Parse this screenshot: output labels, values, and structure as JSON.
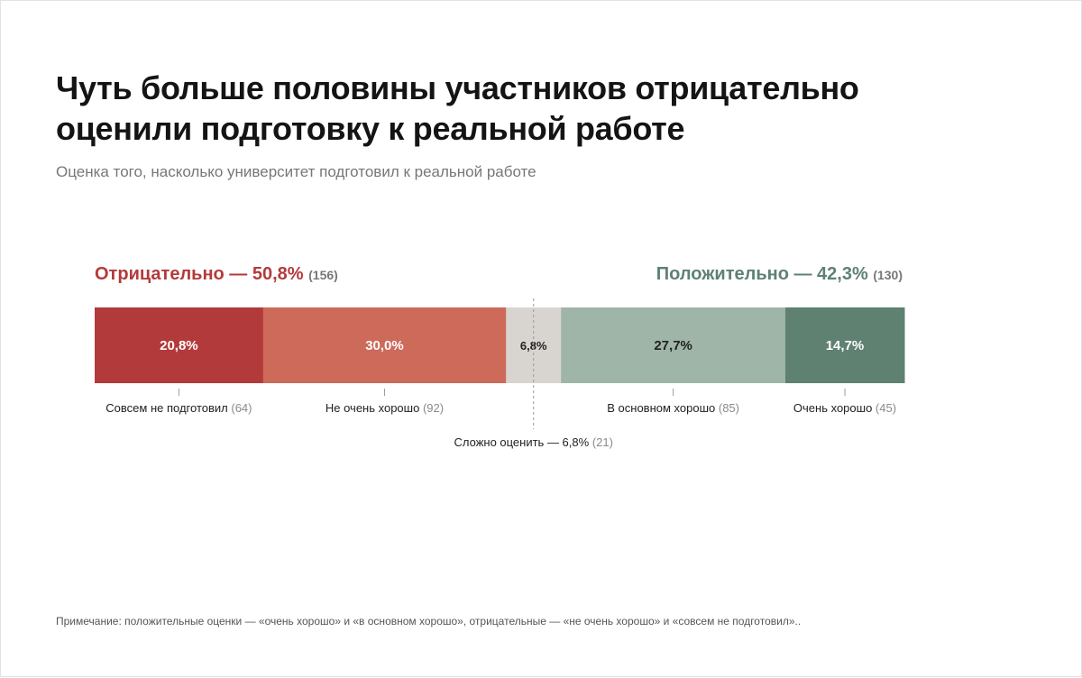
{
  "header": {
    "title": "Чуть больше половины участников отрицательно оценили подготовку к реальной работе",
    "subtitle": "Оценка того, насколько университет подготовил к реальной работе"
  },
  "groups": {
    "negative": {
      "label": "Отрицательно — 50,8%",
      "count": "(156)",
      "color": "#b33a3b"
    },
    "positive": {
      "label": "Положительно — 42,3%",
      "count": "(130)",
      "color": "#5e8172"
    }
  },
  "chart_data": {
    "type": "bar",
    "stacked": true,
    "orientation": "horizontal",
    "unit": "%",
    "segments": [
      {
        "category": "Совсем не подготовил",
        "value": 20.8,
        "value_label": "20,8%",
        "count": 64,
        "count_label": "(64)",
        "color": "#b33a3b",
        "text_color": "#ffffff"
      },
      {
        "category": "Не очень хорошо",
        "value": 30.0,
        "value_label": "30,0%",
        "count": 92,
        "count_label": "(92)",
        "color": "#cd6a5a",
        "text_color": "#ffffff"
      },
      {
        "category": "Сложно оценить — 6,8%",
        "value": 6.8,
        "value_label": "6,8%",
        "count": 21,
        "count_label": "(21)",
        "color": "#d8d5d0",
        "text_color": "#222222"
      },
      {
        "category": "В основном хорошо",
        "value": 27.7,
        "value_label": "27,7%",
        "count": 85,
        "count_label": "(85)",
        "color": "#9fb5a8",
        "text_color": "#222222"
      },
      {
        "category": "Очень хорошо",
        "value": 14.7,
        "value_label": "14,7%",
        "count": 45,
        "count_label": "(45)",
        "color": "#5e8172",
        "text_color": "#ffffff"
      }
    ]
  },
  "footer": {
    "note": "Примечание: положительные оценки — «очень хорошо» и «в основном хорошо», отрицательные — «не очень хорошо» и «совсем не подготовил».."
  }
}
